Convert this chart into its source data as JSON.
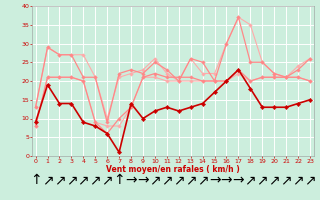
{
  "x": [
    0,
    1,
    2,
    3,
    4,
    5,
    6,
    7,
    8,
    9,
    10,
    11,
    12,
    13,
    14,
    15,
    16,
    17,
    18,
    19,
    20,
    21,
    22,
    23
  ],
  "series": [
    {
      "name": "rafales_light1",
      "color": "#ffaaaa",
      "linewidth": 0.8,
      "marker": "D",
      "markersize": 1.8,
      "y": [
        13,
        29,
        27,
        27,
        27,
        21,
        10,
        21,
        22,
        23,
        26,
        22,
        20,
        26,
        22,
        22,
        30,
        37,
        35,
        25,
        22,
        21,
        24,
        26
      ]
    },
    {
      "name": "moyen_light1",
      "color": "#ffaaaa",
      "linewidth": 0.8,
      "marker": "D",
      "markersize": 1.8,
      "y": [
        8,
        21,
        21,
        21,
        20,
        9,
        8,
        8,
        13,
        21,
        21,
        20,
        20,
        20,
        20,
        20,
        20,
        22,
        20,
        21,
        21,
        21,
        21,
        20
      ]
    },
    {
      "name": "rafales_light2",
      "color": "#ff8888",
      "linewidth": 0.9,
      "marker": "D",
      "markersize": 1.8,
      "y": [
        13,
        29,
        27,
        27,
        21,
        21,
        9,
        22,
        23,
        22,
        25,
        23,
        20,
        26,
        25,
        20,
        30,
        37,
        25,
        25,
        22,
        21,
        23,
        26
      ]
    },
    {
      "name": "moyen_light2",
      "color": "#ff8888",
      "linewidth": 0.9,
      "marker": "D",
      "markersize": 1.8,
      "y": [
        8,
        21,
        21,
        21,
        20,
        9,
        6,
        10,
        13,
        21,
        22,
        21,
        21,
        21,
        20,
        20,
        20,
        23,
        20,
        21,
        21,
        21,
        21,
        20
      ]
    },
    {
      "name": "vent_moyen_dark",
      "color": "#cc0000",
      "linewidth": 1.2,
      "marker": "D",
      "markersize": 2.2,
      "y": [
        9,
        19,
        14,
        14,
        9,
        8,
        6,
        1,
        14,
        10,
        12,
        13,
        12,
        13,
        14,
        17,
        20,
        23,
        18,
        13,
        13,
        13,
        14,
        15
      ]
    }
  ],
  "xlim": [
    -0.3,
    23.3
  ],
  "ylim": [
    0,
    40
  ],
  "yticks": [
    0,
    5,
    10,
    15,
    20,
    25,
    30,
    35,
    40
  ],
  "xticks": [
    0,
    1,
    2,
    3,
    4,
    5,
    6,
    7,
    8,
    9,
    10,
    11,
    12,
    13,
    14,
    15,
    16,
    17,
    18,
    19,
    20,
    21,
    22,
    23
  ],
  "xlabel": "Vent moyen/en rafales ( km/h )",
  "background_color": "#cceedd",
  "grid_color": "#ffffff",
  "tick_color": "#cc0000",
  "label_color": "#cc0000",
  "arrow_symbols": [
    "↑",
    "↗",
    "↗",
    "↗",
    "↗",
    "↗",
    "↗",
    "↑",
    "→",
    "→",
    "↗",
    "↗",
    "↗",
    "↗",
    "↗",
    "→",
    "→",
    "→",
    "↗",
    "↗",
    "↗",
    "↗",
    "↗",
    "↗"
  ]
}
